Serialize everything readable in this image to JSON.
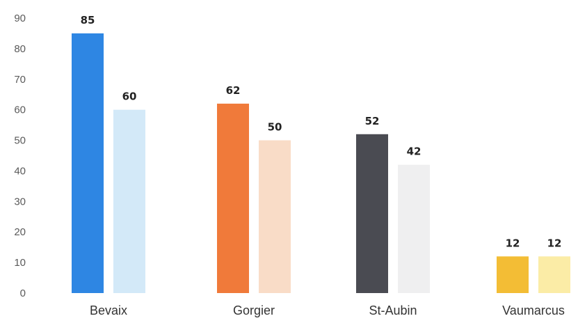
{
  "chart_data": {
    "type": "bar",
    "categories": [
      "Bevaix",
      "Gorgier",
      "St-Aubin",
      "Vaumarcus"
    ],
    "series": [
      {
        "values": [
          85,
          62,
          52,
          12
        ]
      },
      {
        "values": [
          60,
          50,
          42,
          12
        ]
      }
    ],
    "bar_colors": [
      [
        "#2e86e3",
        "#d3e9f8"
      ],
      [
        "#f07a3a",
        "#f9dcc7"
      ],
      [
        "#4a4b52",
        "#efeff0"
      ],
      [
        "#f3bd35",
        "#fbeca6"
      ]
    ],
    "title": "",
    "xlabel": "",
    "ylabel": "",
    "ylim": [
      0,
      90
    ],
    "yticks": [
      0,
      10,
      20,
      30,
      40,
      50,
      60,
      70,
      80,
      90
    ],
    "grid": false,
    "legend": "none"
  }
}
